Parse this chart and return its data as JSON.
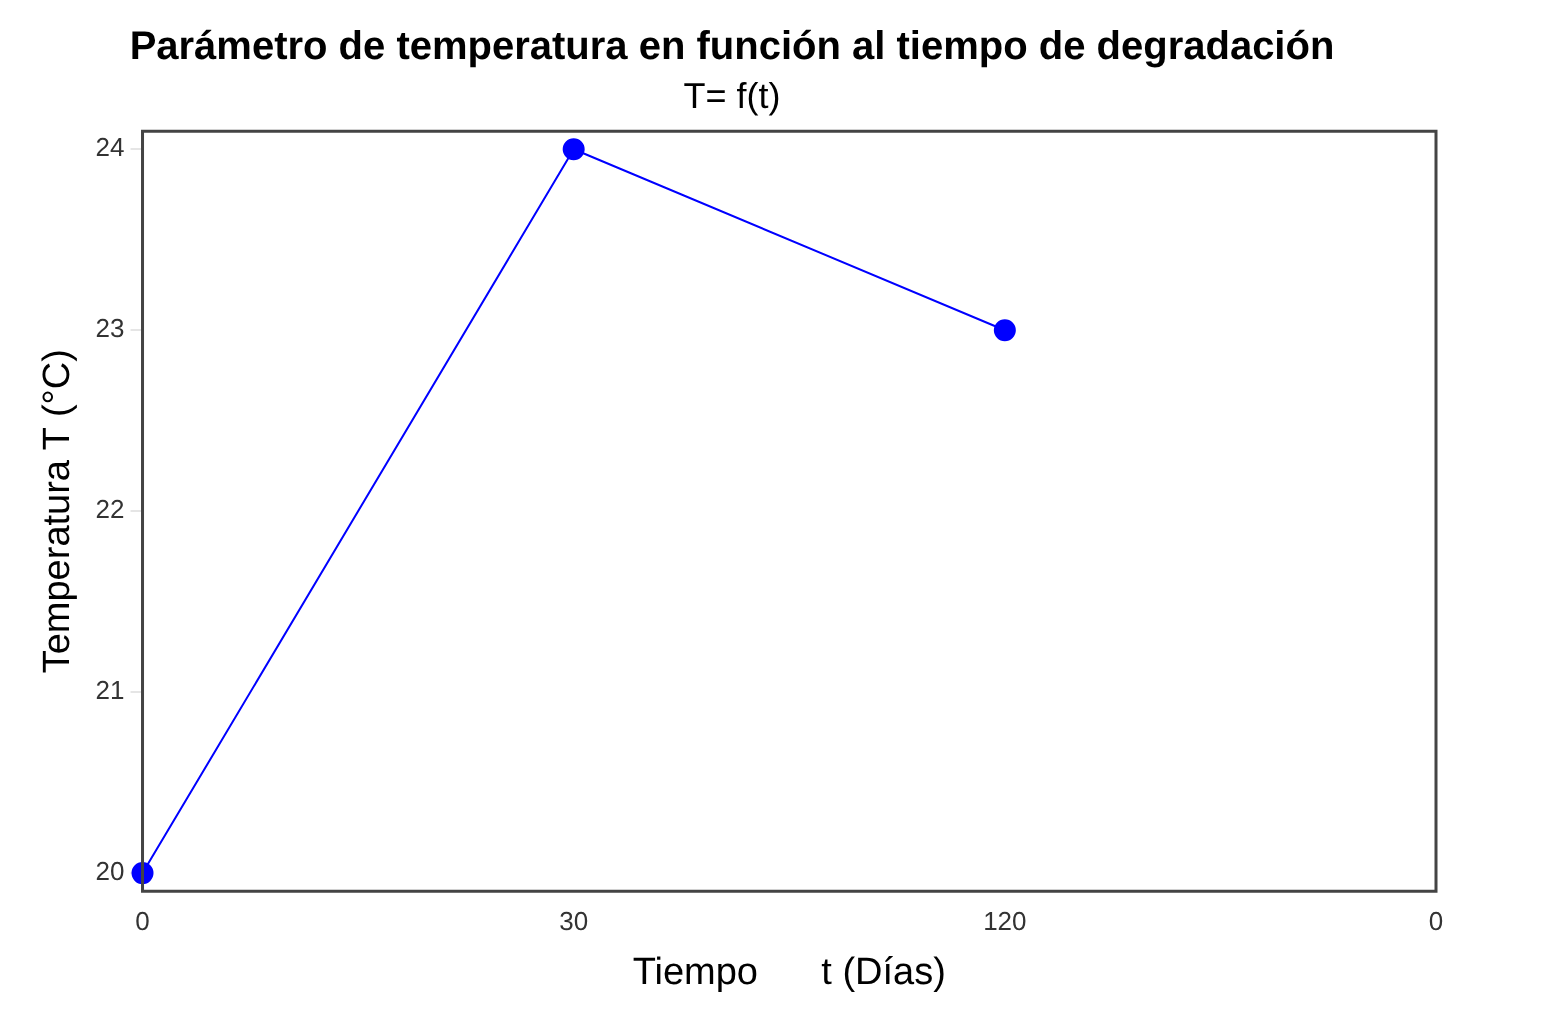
{
  "chart_data": {
    "type": "line",
    "title": "Parámetro de temperatura en función al tiempo de degradación",
    "subtitle": "T= f(t)",
    "xlabel": "Tiempo      t (Días)",
    "ylabel": "Temperatura T (°C)",
    "categories": [
      "0",
      "30",
      "120",
      "0"
    ],
    "series": [
      {
        "color": "#0000ff",
        "values": [
          20,
          24,
          23,
          null
        ]
      }
    ],
    "ylim": [
      19.9,
      24.1
    ],
    "yticks": [
      20,
      21,
      22,
      23,
      24
    ],
    "grid": false,
    "legend": false,
    "marker": "circle",
    "line_style": "solid"
  }
}
